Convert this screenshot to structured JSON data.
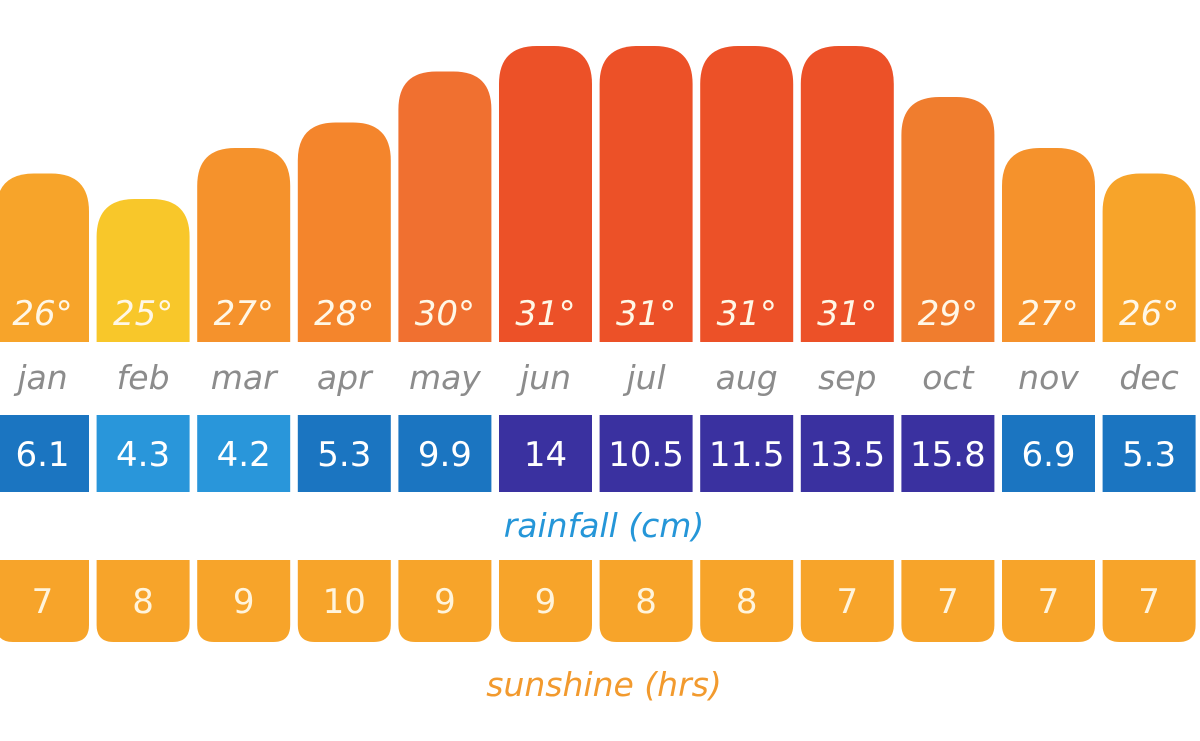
{
  "chart_data": {
    "type": "bar",
    "categories": [
      "jan",
      "feb",
      "mar",
      "apr",
      "may",
      "jun",
      "jul",
      "aug",
      "sep",
      "oct",
      "nov",
      "dec"
    ],
    "temperature": {
      "values": [
        26,
        25,
        27,
        28,
        30,
        31,
        31,
        31,
        31,
        29,
        27,
        26
      ],
      "labels": [
        "26°",
        "25°",
        "27°",
        "28°",
        "30°",
        "31°",
        "31°",
        "31°",
        "31°",
        "29°",
        "27°",
        "26°"
      ],
      "colors": [
        "#f7a42a",
        "#f8c72a",
        "#f5922c",
        "#f4852c",
        "#f07030",
        "#ec5128",
        "#ec5128",
        "#ec5128",
        "#ec5128",
        "#f07d2e",
        "#f5922c",
        "#f7a42a"
      ]
    },
    "rainfall": {
      "caption": "rainfall (cm)",
      "values": [
        6.1,
        4.3,
        4.2,
        5.3,
        9.9,
        14,
        10.5,
        11.5,
        13.5,
        15.8,
        6.9,
        5.3
      ],
      "labels": [
        "6.1",
        "4.3",
        "4.2",
        "5.3",
        "9.9",
        "14",
        "10.5",
        "11.5",
        "13.5",
        "15.8",
        "6.9",
        "5.3"
      ],
      "colors": [
        "#1b75c1",
        "#2996da",
        "#2996da",
        "#1b75c1",
        "#1b75c1",
        "#3a31a0",
        "#3a31a0",
        "#3a31a0",
        "#3a31a0",
        "#3a31a0",
        "#1b75c1",
        "#1b75c1"
      ]
    },
    "sunshine": {
      "caption": "sunshine (hrs)",
      "values": [
        7,
        8,
        9,
        10,
        9,
        9,
        8,
        8,
        7,
        7,
        7,
        7
      ],
      "labels": [
        "7",
        "8",
        "9",
        "10",
        "9",
        "9",
        "8",
        "8",
        "7",
        "7",
        "7",
        "7"
      ],
      "color": "#f7a42a"
    },
    "colors": {
      "rainfall_caption": "#2596d8",
      "sunshine_caption": "#f29a2e",
      "month_text": "#8c8c8c"
    },
    "temp_scale": [
      20,
      32
    ]
  }
}
